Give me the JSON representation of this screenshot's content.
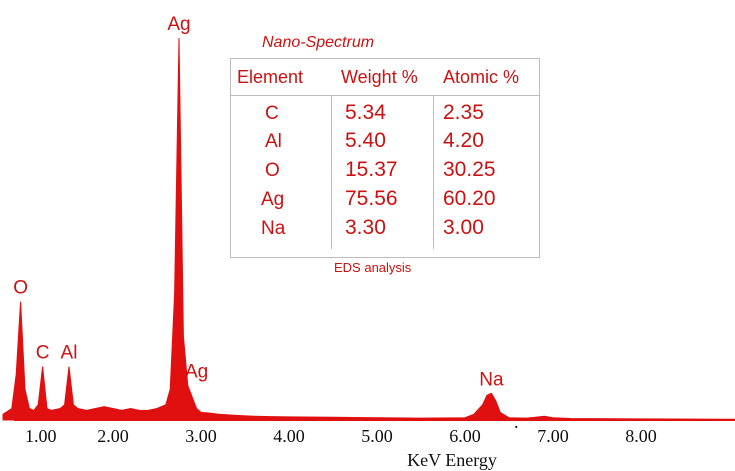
{
  "chart_data": {
    "type": "line",
    "title": "",
    "xlabel": "KeV Energy",
    "ylabel": "",
    "xlim": [
      0.75,
      9.3
    ],
    "ylim": [
      0,
      100
    ],
    "xticks": [
      "1.00",
      "2.00",
      "3.00",
      "4.00",
      "5.00",
      "6.00",
      "7.00",
      "8.00"
    ],
    "xtick_values": [
      1,
      2,
      3,
      4,
      5,
      6,
      7,
      8
    ],
    "stray_tick_mark": ".",
    "series": [
      {
        "x": [
          0.75,
          0.85,
          0.9,
          0.95,
          1.0,
          1.05,
          1.1,
          1.15,
          1.2,
          1.25,
          1.3,
          1.4,
          1.45,
          1.5,
          1.55,
          1.6,
          1.7,
          1.8,
          1.9,
          2.0,
          2.1,
          2.2,
          2.3,
          2.4,
          2.5,
          2.6,
          2.65,
          2.7,
          2.75,
          2.8,
          2.85,
          2.9,
          2.95,
          3.0,
          3.1,
          3.2,
          3.4,
          3.6,
          3.8,
          4.0,
          4.5,
          5.0,
          5.5,
          6.0,
          6.1,
          6.2,
          6.25,
          6.3,
          6.35,
          6.4,
          6.5,
          6.7,
          6.8,
          6.9,
          7.0,
          7.2,
          8.0,
          9.0,
          9.3
        ],
        "y": [
          1.5,
          3,
          12,
          31,
          8,
          3,
          2.5,
          4,
          14,
          3,
          2.5,
          3,
          4,
          14,
          4,
          3,
          2.5,
          3,
          3.5,
          3,
          2.5,
          3,
          2.5,
          2.5,
          3,
          4,
          8,
          33,
          100,
          22,
          9,
          6,
          3,
          2,
          1.8,
          1.5,
          1.2,
          1,
          0.9,
          0.8,
          0.7,
          0.6,
          0.5,
          0.6,
          1.5,
          4,
          6.5,
          7,
          5,
          2,
          0.6,
          0.5,
          0.7,
          1,
          0.6,
          0.4,
          0.3,
          0.2,
          0.2
        ]
      }
    ],
    "peak_labels": [
      {
        "label": "Ag",
        "x": 2.75,
        "y": 100
      },
      {
        "label": "O",
        "x": 0.95,
        "y": 31
      },
      {
        "label": "C",
        "x": 1.2,
        "y": 14
      },
      {
        "label": "Al",
        "x": 1.5,
        "y": 14
      },
      {
        "label": "Ag",
        "x": 2.95,
        "y": 9
      },
      {
        "label": "Na",
        "x": 6.3,
        "y": 7
      }
    ],
    "color": "#e01010"
  },
  "table": {
    "title": "Nano-Spectrum",
    "headers": [
      "Element",
      "Weight %",
      "Atomic %"
    ],
    "rows": [
      [
        "C",
        "5.34",
        "2.35"
      ],
      [
        "Al",
        "5.40",
        "4.20"
      ],
      [
        "O",
        "15.37",
        "30.25"
      ],
      [
        "Ag",
        "75.56",
        "60.20"
      ],
      [
        "Na",
        "3.30",
        "3.00"
      ]
    ],
    "footer": "EDS analysis"
  }
}
